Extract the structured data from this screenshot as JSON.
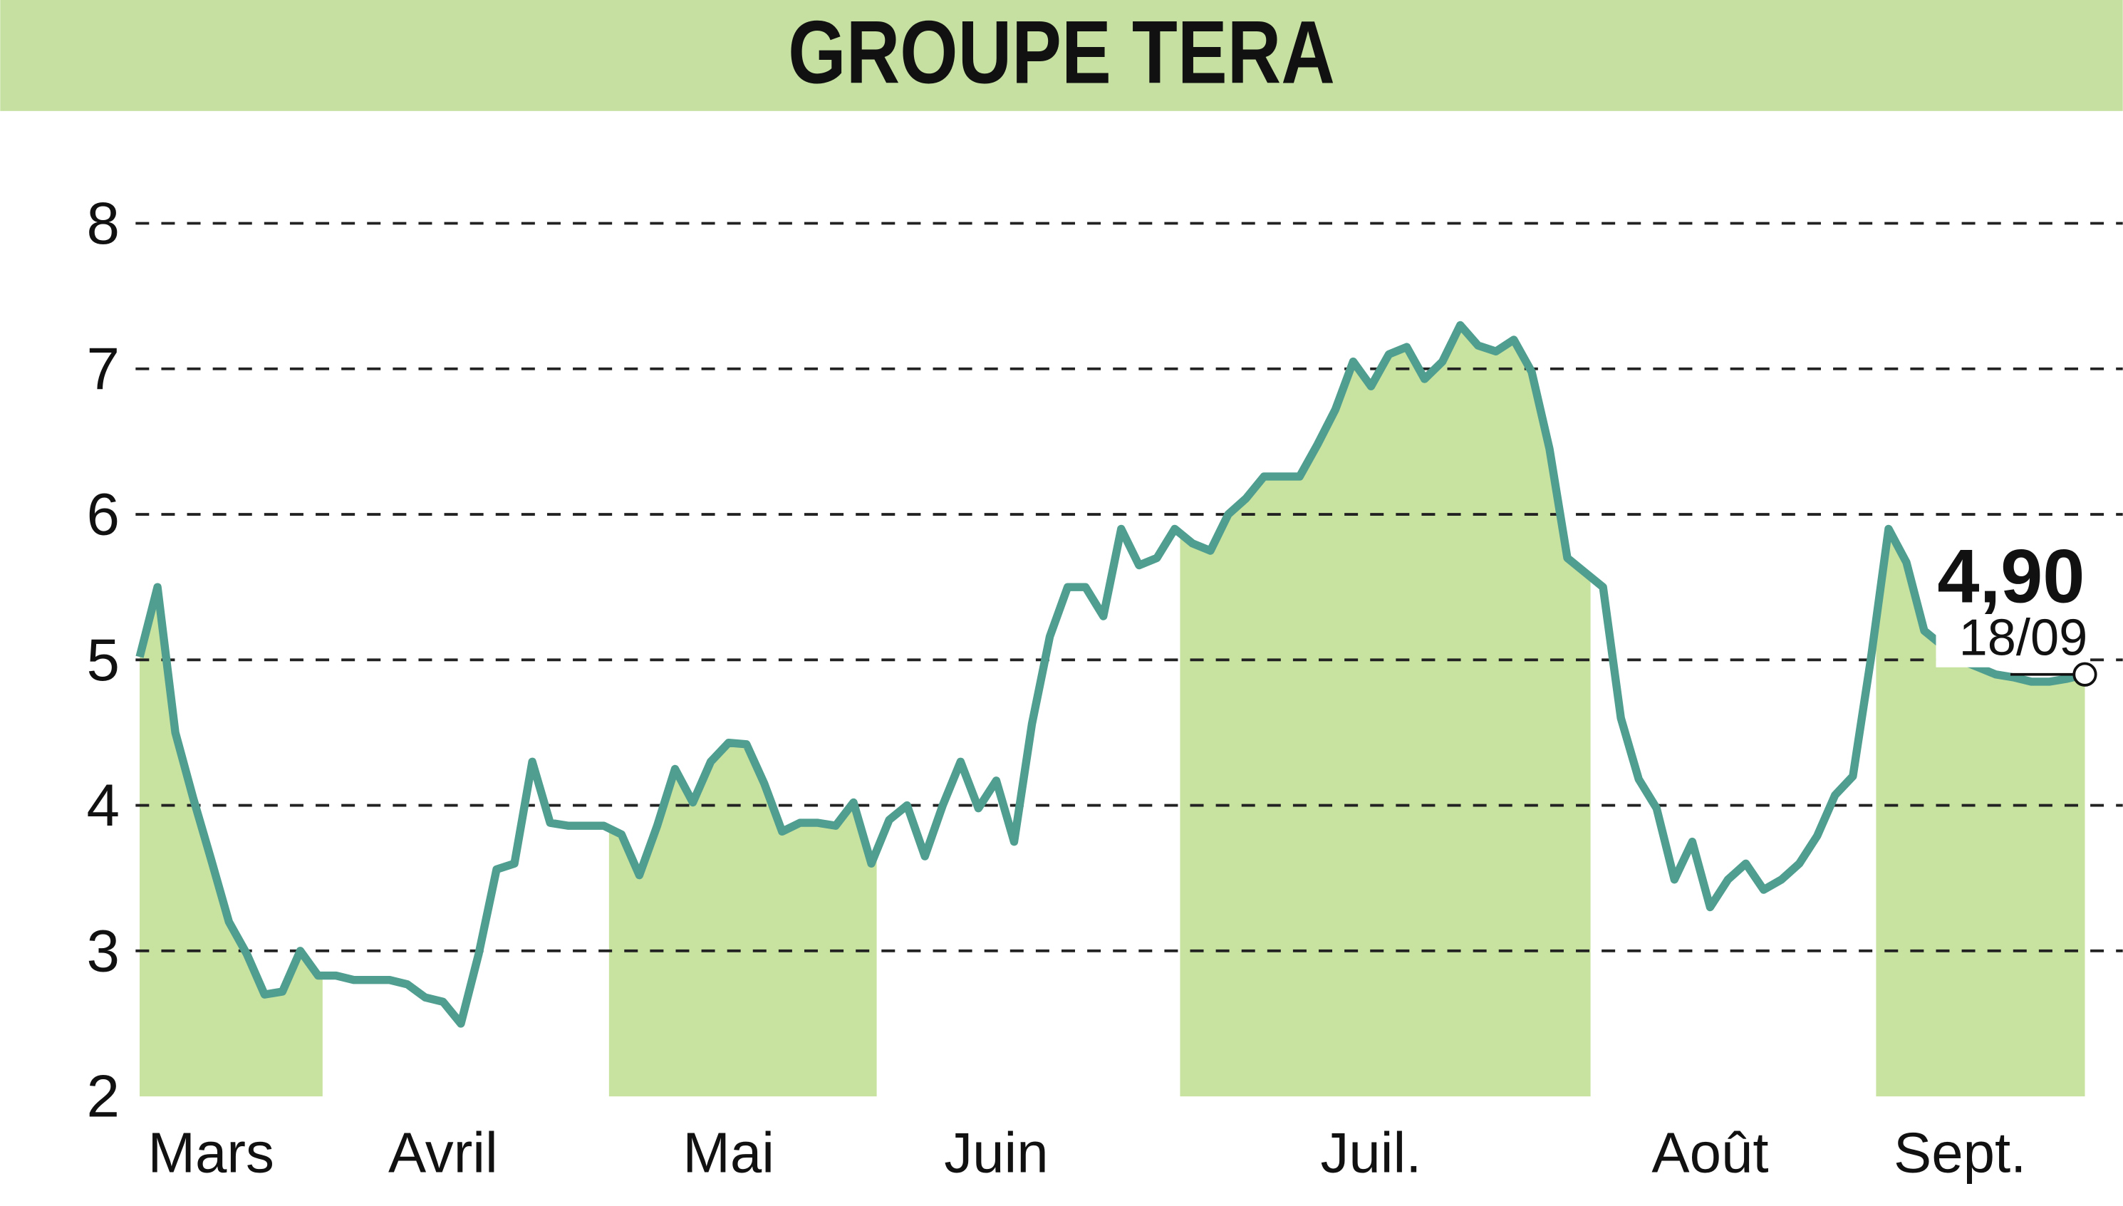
{
  "chart_data": {
    "type": "line",
    "title": "GROUPE TERA",
    "categories": [
      null,
      null,
      null,
      null,
      "Mars",
      null,
      null,
      null,
      null,
      null,
      null,
      null,
      null,
      null,
      null,
      null,
      null,
      "Avril",
      null,
      null,
      null,
      null,
      null,
      null,
      null,
      null,
      null,
      null,
      null,
      null,
      null,
      null,
      null,
      "Mai",
      null,
      null,
      null,
      null,
      null,
      null,
      null,
      null,
      null,
      null,
      null,
      null,
      null,
      null,
      "Juin",
      null,
      null,
      null,
      null,
      null,
      null,
      null,
      null,
      null,
      null,
      null,
      null,
      null,
      null,
      null,
      null,
      null,
      null,
      null,
      null,
      "Juil.",
      null,
      null,
      null,
      null,
      null,
      null,
      null,
      null,
      null,
      null,
      null,
      null,
      null,
      null,
      null,
      null,
      null,
      null,
      "Août",
      null,
      null,
      null,
      null,
      null,
      null,
      null,
      null,
      null,
      null,
      null,
      null,
      null,
      "Sept.",
      null,
      null,
      null,
      null,
      null,
      null,
      null
    ],
    "series": [
      {
        "name": "GROUPE TERA",
        "color": "#4f9e8f",
        "fill": "#c8e2a0",
        "values": [
          5.02,
          5.5,
          4.5,
          4.05,
          3.63,
          3.2,
          2.98,
          2.7,
          2.72,
          3.0,
          2.83,
          2.83,
          2.8,
          2.8,
          2.8,
          2.77,
          2.68,
          2.65,
          2.5,
          2.98,
          3.56,
          3.6,
          4.3,
          3.88,
          3.86,
          3.86,
          3.86,
          3.8,
          3.52,
          3.86,
          4.25,
          4.02,
          4.3,
          4.43,
          4.42,
          4.15,
          3.82,
          3.88,
          3.88,
          3.86,
          4.02,
          3.6,
          3.9,
          4.0,
          3.65,
          4.0,
          4.3,
          3.98,
          4.17,
          3.75,
          4.56,
          5.16,
          5.5,
          5.5,
          5.3,
          5.9,
          5.65,
          5.7,
          5.9,
          5.8,
          5.75,
          6.0,
          6.11,
          6.26,
          6.26,
          6.26,
          6.48,
          6.72,
          7.05,
          6.88,
          7.1,
          7.15,
          6.93,
          7.05,
          7.3,
          7.16,
          7.12,
          7.2,
          6.98,
          6.45,
          5.7,
          5.6,
          5.5,
          4.6,
          4.18,
          3.98,
          3.49,
          3.75,
          3.3,
          3.49,
          3.6,
          3.42,
          3.49,
          3.6,
          3.79,
          4.07,
          4.2,
          5.0,
          5.9,
          5.67,
          5.2,
          5.1,
          5.0,
          4.95,
          4.9,
          4.88,
          4.85,
          4.85,
          4.87,
          4.9
        ]
      }
    ],
    "last_label": {
      "value": 4.9,
      "value_label": "4,90",
      "date": "18/09"
    },
    "ylim": [
      2,
      8
    ],
    "yticks": [
      2,
      3,
      4,
      5,
      6,
      7,
      8
    ],
    "grid": true
  }
}
